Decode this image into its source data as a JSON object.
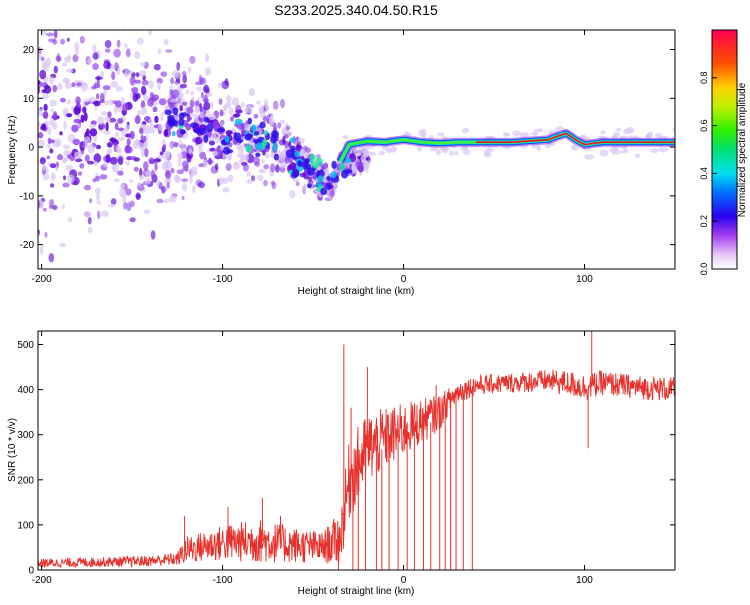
{
  "title": "S233.2025.340.04.50.R15",
  "colors": {
    "snr_line": "#e8302a",
    "dots_low": "#d8c6f4",
    "dots_mid": "#8f40ea",
    "dots_high": "#5a00d8",
    "ridge_core": "#e8103a",
    "axes": "#000000"
  },
  "chart_data": [
    {
      "type": "heatmap",
      "name": "spectrogram",
      "xlabel": "Height of straight line (km)",
      "ylabel": "Frequency (Hz)",
      "xlim": [
        -202,
        150
      ],
      "ylim": [
        -25,
        24
      ],
      "xticks": [
        -200,
        -100,
        0,
        100
      ],
      "xtick_labels": [
        "-200",
        "-100",
        "0",
        "100"
      ],
      "yticks": [
        -20,
        -10,
        0,
        10,
        20
      ],
      "ytick_labels": [
        "-20",
        "-10",
        "0",
        "10",
        "20"
      ],
      "tone_ridge": {
        "x": [
          -35,
          -30,
          -20,
          -10,
          0,
          10,
          20,
          30,
          40,
          60,
          80,
          85,
          90,
          95,
          100,
          110,
          130,
          150
        ],
        "freq": [
          -3,
          0.5,
          1.2,
          1.0,
          1.5,
          1.0,
          0.8,
          1.0,
          1.0,
          1.0,
          1.5,
          2.2,
          2.8,
          1.5,
          0.5,
          1.0,
          1.0,
          1.0
        ]
      },
      "scattered_energy": {
        "x": [
          -200,
          -150,
          -120,
          -100,
          -80,
          -60,
          -50,
          -40,
          -35
        ],
        "center_freq": [
          5,
          5,
          4,
          3,
          2,
          -2,
          -5,
          -8,
          -3
        ],
        "spread_hz": [
          20,
          18,
          12,
          9,
          7,
          5,
          4,
          3,
          2
        ]
      },
      "colorbar": {
        "label": "Normalized spectral amplitude",
        "range": [
          0,
          1
        ],
        "ticks": [
          0.0,
          0.2,
          0.4,
          0.6,
          0.8
        ],
        "tick_labels": [
          "0.0",
          "0.2",
          "0.4",
          "0.6",
          "0.8"
        ]
      }
    },
    {
      "type": "line",
      "name": "snr",
      "xlabel": "Height of straight line (km)",
      "ylabel": "SNR (10 * v/v)",
      "xlim": [
        -202,
        150
      ],
      "ylim": [
        0,
        530
      ],
      "xticks": [
        -200,
        -100,
        0,
        100
      ],
      "xtick_labels": [
        "-200",
        "-100",
        "0",
        "100"
      ],
      "yticks": [
        0,
        100,
        200,
        300,
        400,
        500
      ],
      "ytick_labels": [
        "0",
        "100",
        "200",
        "300",
        "400",
        "500"
      ],
      "envelope": {
        "x": [
          -202,
          -140,
          -125,
          -120,
          -100,
          -80,
          -60,
          -45,
          -35,
          -30,
          -20,
          -10,
          0,
          10,
          20,
          25,
          30,
          40,
          60,
          80,
          90,
          100,
          110,
          130,
          150
        ],
        "median": [
          15,
          20,
          25,
          45,
          60,
          65,
          55,
          50,
          70,
          200,
          270,
          290,
          310,
          330,
          350,
          375,
          395,
          410,
          415,
          420,
          415,
          405,
          415,
          405,
          400
        ],
        "spread": [
          10,
          12,
          15,
          30,
          40,
          50,
          40,
          35,
          60,
          90,
          80,
          70,
          60,
          50,
          40,
          30,
          25,
          22,
          22,
          25,
          28,
          30,
          28,
          26,
          28
        ]
      },
      "spikes": [
        {
          "x": -121,
          "y": 120
        },
        {
          "x": -97,
          "y": 140
        },
        {
          "x": -78,
          "y": 160
        },
        {
          "x": -68,
          "y": 120
        },
        {
          "x": -33,
          "y": 500
        },
        {
          "x": -29,
          "y": 360
        },
        {
          "x": -20,
          "y": 450
        },
        {
          "x": 18,
          "y": 410
        },
        {
          "x": 104,
          "y": 530
        },
        {
          "x": 102,
          "y": 270
        }
      ],
      "dropouts": [
        -36,
        -28,
        -25,
        -21,
        -15,
        -12,
        -8,
        -3,
        2,
        6,
        11,
        15,
        20,
        23,
        26,
        29,
        33,
        38
      ]
    }
  ]
}
